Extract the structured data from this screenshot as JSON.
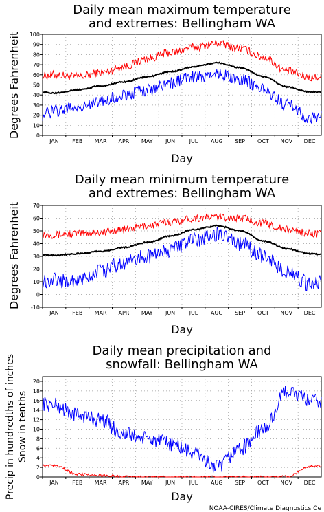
{
  "months": [
    "JAN",
    "FEB",
    "MAR",
    "APR",
    "MAY",
    "JUN",
    "JUL",
    "AUG",
    "SEP",
    "OCT",
    "NOV",
    "DEC"
  ],
  "credit": "NOAA-CIRES/Climate Diagnostics Ce",
  "colors": {
    "max_extreme": "#ff0000",
    "min_extreme": "#0000ff",
    "mean": "#000000",
    "precip": "#0000ff",
    "snow": "#ff0000",
    "grid": "#9a9a9a"
  },
  "chart_data": [
    {
      "type": "line",
      "title_line1": "Daily mean maximum temperature",
      "title_line2": "and extremes: Bellingham WA",
      "xlabel": "Day",
      "ylabel": "Degrees Fahrenheit",
      "ylim": [
        0,
        100
      ],
      "yticks": [
        0,
        10,
        20,
        30,
        40,
        50,
        60,
        70,
        80,
        90,
        100
      ],
      "grid": true,
      "series": [
        {
          "values": [
            60,
            58,
            62,
            68,
            76,
            82,
            87,
            91,
            86,
            77,
            64,
            57
          ]
        },
        {
          "values": [
            42,
            45,
            49,
            53,
            58,
            63,
            68,
            72,
            67,
            58,
            48,
            43
          ]
        },
        {
          "values": [
            24,
            28,
            33,
            40,
            45,
            52,
            58,
            60,
            56,
            45,
            30,
            17
          ]
        }
      ]
    },
    {
      "type": "line",
      "title_line1": "Daily mean minimum temperature",
      "title_line2": "and extremes: Bellingham WA",
      "xlabel": "Day",
      "ylabel": "Degrees Fahrenheit",
      "ylim": [
        -10,
        70
      ],
      "yticks": [
        -10,
        0,
        10,
        20,
        30,
        40,
        50,
        60,
        70
      ],
      "grid": true,
      "series": [
        {
          "values": [
            47,
            48,
            49,
            51,
            54,
            57,
            60,
            61,
            60,
            56,
            51,
            48
          ]
        },
        {
          "values": [
            31,
            32,
            34,
            37,
            41,
            46,
            51,
            54,
            50,
            42,
            36,
            32
          ]
        },
        {
          "values": [
            12,
            10,
            18,
            25,
            30,
            35,
            43,
            47,
            40,
            30,
            18,
            8
          ]
        }
      ]
    },
    {
      "type": "line",
      "title_line1": "Daily mean precipitation and",
      "title_line2": "snowfall: Bellingham WA",
      "xlabel": "Day",
      "ylabel_line1": "Precip in hundredths of inches",
      "ylabel_line2": "Snow in tenths",
      "ylim": [
        0,
        21
      ],
      "yticks": [
        0,
        2,
        4,
        6,
        8,
        10,
        12,
        14,
        16,
        18,
        20
      ],
      "grid": true,
      "series": [
        {
          "values": [
            15,
            13,
            12,
            9,
            8,
            7,
            5,
            2,
            6,
            10,
            18,
            16
          ]
        },
        {
          "values": [
            2.5,
            0.6,
            0.3,
            0.1,
            0,
            0,
            0,
            0,
            0,
            0,
            0.1,
            2.2
          ]
        }
      ]
    }
  ]
}
